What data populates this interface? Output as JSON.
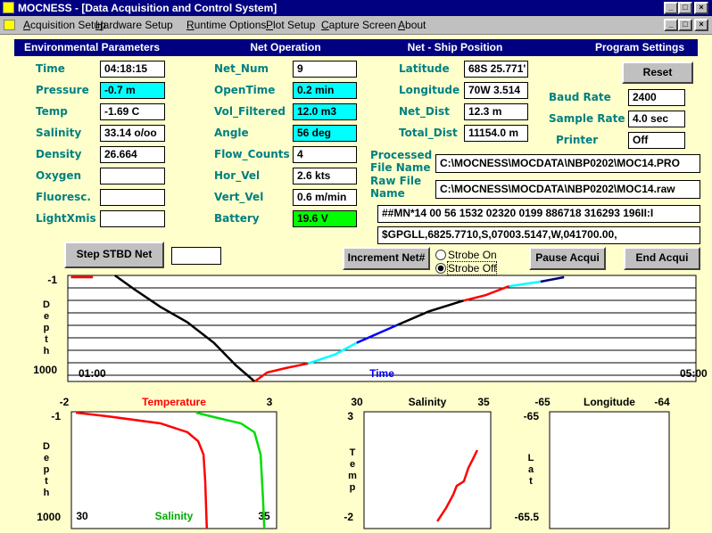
{
  "window": {
    "title": "MOCNESS - [Data Acquisition and Control System]"
  },
  "menu": [
    "Acquisition Setup",
    "Hardware Setup",
    "Runtime Options",
    "Plot Setup",
    "Capture Screen",
    "About"
  ],
  "sections": [
    "Environmental Parameters",
    "Net Operation",
    "Net - Ship Position",
    "Program Settings"
  ],
  "environmental": [
    {
      "label": "Time",
      "value": "04:18:15"
    },
    {
      "label": "Pressure",
      "value": "-0.7 m",
      "highlight": "#00ffff"
    },
    {
      "label": "Temp",
      "value": "-1.69 C"
    },
    {
      "label": "Salinity",
      "value": "33.14 o/oo"
    },
    {
      "label": "Density",
      "value": "26.664"
    },
    {
      "label": "Oxygen",
      "value": ""
    },
    {
      "label": "Fluoresc.",
      "value": ""
    },
    {
      "label": "LightXmis",
      "value": ""
    }
  ],
  "net_operation": [
    {
      "label": "Net_Num",
      "value": "9"
    },
    {
      "label": "OpenTime",
      "value": "0.2 min",
      "highlight": "#00ffff"
    },
    {
      "label": "Vol_Filtered",
      "value": "12.0 m3",
      "highlight": "#00ffff"
    },
    {
      "label": "Angle",
      "value": "56 deg",
      "highlight": "#00ffff"
    },
    {
      "label": "Flow_Counts",
      "value": "4"
    },
    {
      "label": "Hor_Vel",
      "value": "2.6 kts"
    },
    {
      "label": "Vert_Vel",
      "value": "0.6 m/min"
    },
    {
      "label": "Battery",
      "value": "19.6 V",
      "highlight": "#00ff00"
    }
  ],
  "position": [
    {
      "label": "Latitude",
      "value": "68S 25.771'"
    },
    {
      "label": "Longitude",
      "value": "70W 3.514"
    },
    {
      "label": "Net_Dist",
      "value": "12.3 m"
    },
    {
      "label": "Total_Dist",
      "value": "11154.0 m"
    }
  ],
  "settings": {
    "reset": "Reset",
    "fields": [
      {
        "label": "Baud Rate",
        "value": "2400"
      },
      {
        "label": "Sample Rate",
        "value": "4.0 sec"
      },
      {
        "label": "Printer",
        "value": "Off"
      }
    ]
  },
  "files": [
    {
      "label": "Processed File Name",
      "value": "C:\\MOCNESS\\MOCDATA\\NBP0202\\MOC14.PRO"
    },
    {
      "label": "Raw File Name",
      "value": "C:\\MOCNESS\\MOCDATA\\NBP0202\\MOC14.raw"
    }
  ],
  "raw_strings": [
    "##MN*14 00 56 1532 02320 0199 886718 316293 196II:I",
    "$GPGLL,6825.7710,S,07003.5147,W,041700.00,"
  ],
  "buttons": {
    "step": "Step STBD Net",
    "increment": "Increment Net#",
    "pause": "Pause Acqui",
    "end": "End Acqui"
  },
  "strobe": {
    "options": [
      "Strobe On",
      "Strobe Off"
    ],
    "selected": 1
  },
  "plots": [
    {
      "type": "line",
      "xlabel": "Time",
      "xlabel_color": "#0000ff",
      "ylabel": "Depth",
      "xlim": [
        1,
        5
      ],
      "xticks": [
        {
          "value": 1,
          "label": "01:00"
        },
        {
          "value": 5,
          "label": "05:00"
        }
      ],
      "ylim": [
        -1,
        1000
      ],
      "yticks": [
        -1,
        1000
      ],
      "y_inverted": true,
      "grid": true,
      "series": [
        {
          "color": "#ff0000",
          "x": [
            1.02,
            1.16
          ],
          "values": [
            16,
            16
          ]
        },
        {
          "color": "#000000",
          "x": [
            1.3,
            1.42,
            1.59,
            1.76,
            1.93,
            2.07,
            2.19
          ],
          "values": [
            -1,
            126,
            296,
            440,
            635,
            847,
            1000
          ]
        },
        {
          "color": "#ff0000",
          "x": [
            2.19,
            2.27,
            2.39,
            2.53
          ],
          "values": [
            1000,
            915,
            873,
            830
          ]
        },
        {
          "color": "#00ffff",
          "x": [
            2.53,
            2.7,
            2.84
          ],
          "values": [
            830,
            746,
            635
          ]
        },
        {
          "color": "#0000ff",
          "x": [
            2.84,
            3.1
          ],
          "values": [
            635,
            466
          ]
        },
        {
          "color": "#000000",
          "x": [
            3.1,
            3.3,
            3.52
          ],
          "values": [
            466,
            338,
            237
          ]
        },
        {
          "color": "#ff0000",
          "x": [
            3.52,
            3.66,
            3.81
          ],
          "values": [
            237,
            186,
            101
          ]
        },
        {
          "color": "#00ffff",
          "x": [
            3.81,
            4.01
          ],
          "values": [
            101,
            58
          ]
        },
        {
          "color": "#000080",
          "x": [
            4.01,
            4.16
          ],
          "values": [
            58,
            16
          ]
        }
      ]
    },
    {
      "type": "line",
      "xlabel": "Temperature",
      "xlabel_color": "#ff0000",
      "x2label": "Salinity",
      "x2label_color": "#00aa00",
      "ylabel": "Depth",
      "xlim": [
        -2,
        3
      ],
      "xticks": [
        -2,
        3
      ],
      "x2lim": [
        30,
        35
      ],
      "x2ticks": [
        30,
        35
      ],
      "ylim": [
        -1,
        1000
      ],
      "yticks": [
        -1,
        1000
      ],
      "y_inverted": true,
      "series": [
        {
          "color": "#ff0000",
          "x": [
            -1.89,
            -1.13,
            0.17,
            0.83,
            1.09,
            1.22,
            1.26,
            1.3
          ],
          "values": [
            7,
            37,
            98,
            175,
            251,
            366,
            595,
            1000
          ]
        },
        {
          "color": "#00dd00",
          "axis": "x2",
          "x": [
            33.04,
            33.48,
            34.13,
            34.46,
            34.61,
            34.67,
            34.7
          ],
          "values": [
            7,
            45,
            98,
            175,
            366,
            748,
            1000
          ]
        }
      ]
    },
    {
      "type": "line",
      "xlabel": "Salinity",
      "ylabel": "Temp",
      "xlim": [
        30,
        35
      ],
      "xticks": [
        30,
        35
      ],
      "ylim": [
        -2,
        3
      ],
      "yticks": [
        3,
        -2
      ],
      "series": [
        {
          "color": "#ff0000",
          "x": [
            32.89,
            33.24,
            33.52,
            33.66,
            33.94,
            34.12,
            34.3,
            34.47
          ],
          "values": [
            -1.69,
            -1.12,
            -0.55,
            -0.17,
            0.02,
            0.6,
            0.98,
            1.36
          ]
        }
      ]
    },
    {
      "type": "line",
      "xlabel": "Longitude",
      "ylabel": "Lat",
      "xlim": [
        -65,
        -64
      ],
      "xticks": [
        -65,
        -64
      ],
      "ylim": [
        -65.5,
        -65
      ],
      "yticks": [
        -65,
        -65.5
      ],
      "series": []
    }
  ]
}
